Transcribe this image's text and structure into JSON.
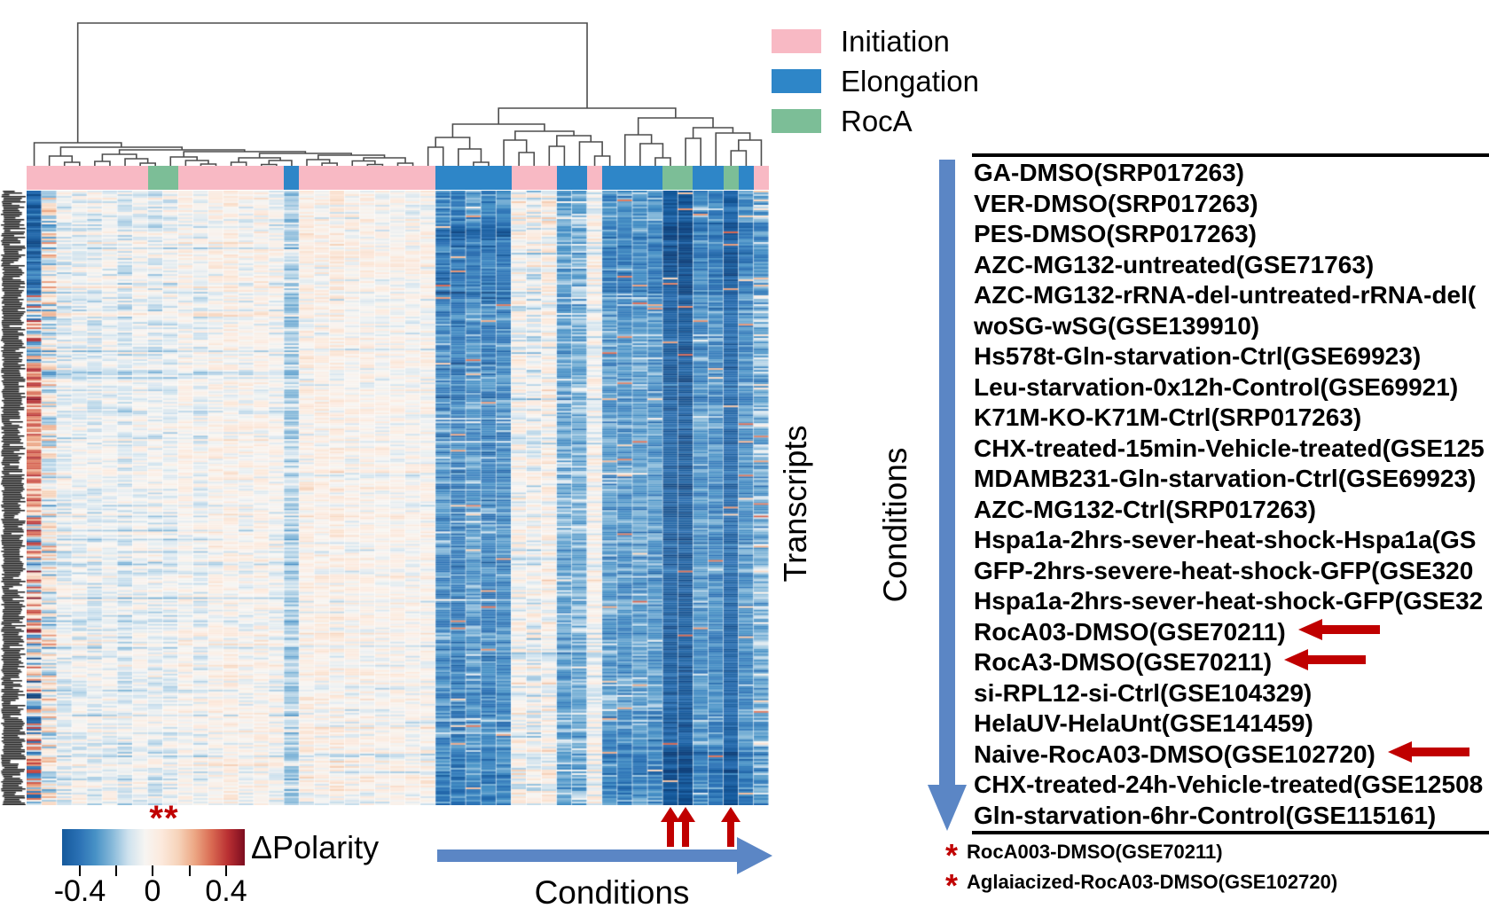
{
  "legend": {
    "items": [
      {
        "label": "Initiation",
        "color": "#F8B9C4"
      },
      {
        "label": "Elongation",
        "color": "#2E86C8"
      },
      {
        "label": "RocA",
        "color": "#7CBE97"
      }
    ]
  },
  "axis_labels": {
    "heatmap_rows": "Transcripts",
    "heatmap_cols_bottom": "Conditions",
    "list_side": "Conditions"
  },
  "colorbar": {
    "label": "ΔPolarity",
    "tick_labels": [
      "-0.4",
      "0",
      "0.4"
    ],
    "significance_marker": "**",
    "gradient": [
      "#155a9c",
      "#2a70b4",
      "#4791c6",
      "#85b8d9",
      "#cfe2ee",
      "#f7f5f2",
      "#fce9dc",
      "#f6d3ba",
      "#eca683",
      "#d96a52",
      "#b92f32",
      "#7c0d20"
    ]
  },
  "conditions_list": {
    "items": [
      {
        "label": "GA-DMSO(SRP017263)",
        "arrow": false
      },
      {
        "label": "VER-DMSO(SRP017263)",
        "arrow": false
      },
      {
        "label": "PES-DMSO(SRP017263)",
        "arrow": false
      },
      {
        "label": "AZC-MG132-untreated(GSE71763)",
        "arrow": false
      },
      {
        "label": "AZC-MG132-rRNA-del-untreated-rRNA-del(",
        "arrow": false
      },
      {
        "label": "woSG-wSG(GSE139910)",
        "arrow": false
      },
      {
        "label": "Hs578t-Gln-starvation-Ctrl(GSE69923)",
        "arrow": false
      },
      {
        "label": "Leu-starvation-0x12h-Control(GSE69921)",
        "arrow": false
      },
      {
        "label": "K71M-KO-K71M-Ctrl(SRP017263)",
        "arrow": false
      },
      {
        "label": "CHX-treated-15min-Vehicle-treated(GSE125",
        "arrow": false
      },
      {
        "label": "MDAMB231-Gln-starvation-Ctrl(GSE69923)",
        "arrow": false
      },
      {
        "label": "AZC-MG132-Ctrl(SRP017263)",
        "arrow": false
      },
      {
        "label": "Hspa1a-2hrs-sever-heat-shock-Hspa1a(GS",
        "arrow": false
      },
      {
        "label": "GFP-2hrs-severe-heat-shock-GFP(GSE320",
        "arrow": false
      },
      {
        "label": "Hspa1a-2hrs-sever-heat-shock-GFP(GSE32",
        "arrow": false
      },
      {
        "label": "RocA03-DMSO(GSE70211)",
        "arrow": true
      },
      {
        "label": "RocA3-DMSO(GSE70211)",
        "arrow": true
      },
      {
        "label": "si-RPL12-si-Ctrl(GSE104329)",
        "arrow": false
      },
      {
        "label": "HelaUV-HelaUnt(GSE141459)",
        "arrow": false
      },
      {
        "label": "Naive-RocA03-DMSO(GSE102720)",
        "arrow": true
      },
      {
        "label": "CHX-treated-24h-Vehicle-treated(GSE12508",
        "arrow": false
      },
      {
        "label": "Gln-starvation-6hr-Control(GSE115161)",
        "arrow": false
      }
    ],
    "footnotes": [
      {
        "marker": "*",
        "label": "RocA003-DMSO(GSE70211)"
      },
      {
        "marker": "*",
        "label": "Aglaiacized-RocA03-DMSO(GSE102720)"
      }
    ]
  },
  "colors": {
    "pink": "#F8B9C4",
    "blue": "#2E86C8",
    "green": "#7CBE97",
    "arrow_blue": "#5B86C5",
    "arrow_red": "#C00000",
    "dendro": "#4D4D4D",
    "rule": "#000000"
  },
  "chart_data": {
    "type": "heatmap",
    "title": "Clustered heatmap of ΔPolarity across transcripts and conditions",
    "value_label": "ΔPolarity",
    "value_range": [
      -0.4,
      0.4
    ],
    "n_columns": 49,
    "n_rows": 346,
    "class_legend": {
      "I": "Initiation",
      "E": "Elongation",
      "R": "RocA"
    },
    "column_annotation": [
      "I",
      "I",
      "I",
      "I",
      "I",
      "I",
      "I",
      "I",
      "R",
      "R",
      "I",
      "I",
      "I",
      "I",
      "I",
      "I",
      "I",
      "E",
      "I",
      "I",
      "I",
      "I",
      "I",
      "I",
      "I",
      "I",
      "I",
      "E",
      "E",
      "E",
      "E",
      "E",
      "I",
      "I",
      "I",
      "E",
      "E",
      "I",
      "E",
      "E",
      "E",
      "E",
      "R",
      "R",
      "E",
      "E",
      "R",
      "E",
      "I"
    ],
    "highlighted_columns_arrows": [
      42,
      43,
      46
    ],
    "highlighted_list_rows": [
      "RocA03-DMSO(GSE70211)",
      "RocA3-DMSO(GSE70211)",
      "Naive-RocA03-DMSO(GSE102720)"
    ],
    "column_profile": [
      {
        "g": "c0",
        "m": 0,
        "s": 0
      },
      {
        "g": "l",
        "m": 0,
        "s": 0.16
      },
      {
        "g": "l",
        "m": -0.02,
        "s": 0.06
      },
      {
        "g": "l",
        "m": -0.015,
        "s": 0.055
      },
      {
        "g": "l",
        "m": -0.02,
        "s": 0.06
      },
      {
        "g": "l",
        "m": -0.01,
        "s": 0.05
      },
      {
        "g": "l",
        "m": -0.025,
        "s": 0.065
      },
      {
        "g": "l",
        "m": -0.01,
        "s": 0.05
      },
      {
        "g": "l",
        "m": -0.02,
        "s": 0.06
      },
      {
        "g": "l",
        "m": -0.015,
        "s": 0.055
      },
      {
        "g": "l",
        "m": 0.005,
        "s": 0.05
      },
      {
        "g": "l",
        "m": -0.01,
        "s": 0.055
      },
      {
        "g": "l",
        "m": 0.01,
        "s": 0.05
      },
      {
        "g": "l",
        "m": 0.015,
        "s": 0.055
      },
      {
        "g": "l",
        "m": 0,
        "s": 0.05
      },
      {
        "g": "l",
        "m": 0.01,
        "s": 0.05
      },
      {
        "g": "l",
        "m": -0.005,
        "s": 0.05
      },
      {
        "g": "l",
        "m": -0.07,
        "s": 0.07
      },
      {
        "g": "r",
        "m": 0.02,
        "s": 0.055
      },
      {
        "g": "r",
        "m": 0.015,
        "s": 0.05
      },
      {
        "g": "r",
        "m": 0.02,
        "s": 0.06
      },
      {
        "g": "r",
        "m": 0.01,
        "s": 0.05
      },
      {
        "g": "r",
        "m": 0.015,
        "s": 0.05
      },
      {
        "g": "r",
        "m": 0.005,
        "s": 0.045
      },
      {
        "g": "r",
        "m": 0.01,
        "s": 0.045
      },
      {
        "g": "r",
        "m": 0.005,
        "s": 0.045
      },
      {
        "g": "r",
        "m": 0.01,
        "s": 0.05
      },
      {
        "g": "b1",
        "m": -0.2,
        "s": 0.13
      },
      {
        "g": "b1",
        "m": -0.24,
        "s": 0.13
      },
      {
        "g": "b1",
        "m": -0.18,
        "s": 0.12
      },
      {
        "g": "b1",
        "m": -0.22,
        "s": 0.13
      },
      {
        "g": "b1",
        "m": -0.2,
        "s": 0.12
      },
      {
        "g": "pm",
        "m": 0.005,
        "s": 0.07
      },
      {
        "g": "pm",
        "m": -0.01,
        "s": 0.075
      },
      {
        "g": "pm",
        "m": 0.01,
        "s": 0.07
      },
      {
        "g": "pm",
        "m": -0.14,
        "s": 0.1
      },
      {
        "g": "pm",
        "m": -0.12,
        "s": 0.1
      },
      {
        "g": "pm",
        "m": 0,
        "s": 0.06
      },
      {
        "g": "b2",
        "m": -0.16,
        "s": 0.11
      },
      {
        "g": "b2",
        "m": -0.18,
        "s": 0.11
      },
      {
        "g": "b2",
        "m": -0.15,
        "s": 0.1
      },
      {
        "g": "b2",
        "m": -0.17,
        "s": 0.11
      },
      {
        "g": "d",
        "m": -0.36,
        "s": 0.1
      },
      {
        "g": "d",
        "m": -0.38,
        "s": 0.1
      },
      {
        "g": "d",
        "m": -0.18,
        "s": 0.11
      },
      {
        "g": "d",
        "m": -0.2,
        "s": 0.11
      },
      {
        "g": "d",
        "m": -0.33,
        "s": 0.1
      },
      {
        "g": "d",
        "m": -0.19,
        "s": 0.1
      },
      {
        "g": "d",
        "m": -0.12,
        "s": 0.12
      }
    ],
    "col0_bands": [
      {
        "f": 0.17,
        "m": -0.33,
        "s": 0.12
      },
      {
        "f": 0.28,
        "m": 0.02,
        "s": 0.3
      },
      {
        "f": 0.52,
        "m": 0.24,
        "s": 0.16
      },
      {
        "f": 0.72,
        "m": 0.1,
        "s": 0.28
      },
      {
        "f": 1.0,
        "m": -0.02,
        "s": 0.3
      }
    ],
    "colormap_stops": [
      [
        -0.5,
        "#0b3d78"
      ],
      [
        -0.38,
        "#155a9c"
      ],
      [
        -0.28,
        "#2a70b4"
      ],
      [
        -0.18,
        "#4791c6"
      ],
      [
        -0.1,
        "#85b8d9"
      ],
      [
        -0.04,
        "#cfe2ee"
      ],
      [
        0,
        "#f7f5f2"
      ],
      [
        0.04,
        "#fce9dc"
      ],
      [
        0.1,
        "#f6d3ba"
      ],
      [
        0.18,
        "#eca683"
      ],
      [
        0.28,
        "#d96a52"
      ],
      [
        0.38,
        "#b92f32"
      ],
      [
        0.5,
        "#7c0d20"
      ]
    ],
    "dendrogram_columns": [
      [
        0,
        [
          [
            1,
            [
              2,
              3,
              183
            ],
            176
          ],
          [
            [
              [
                4,
                5,
                182
              ],
              [
                6,
                [
                  7,
                  8,
                  184
                ],
                179
              ],
              174
            ],
            [
              [
                9,
                [
                  10,
                  [
                    11,
                    12,
                    185
                  ],
                  181
                ],
                177
              ],
              [
                [
                  [
                    13,
                    14,
                    183
                  ],
                  [
                    [
                      15,
                      16,
                      185.5
                    ],
                    17,
                    181
                  ],
                  178
                ],
                [
                  [
                    18,
                    [
                      19,
                      20,
                      184
                    ],
                    180
                  ],
                  [
                    [
                      21,
                      [
                        22,
                        23,
                        185.5
                      ],
                      181.5
                    ],
                    [
                      24,
                      25,
                      184
                    ],
                    178
                  ],
                  175
                ],
                173
              ],
              171
            ],
            169
          ],
          166
        ],
        161
      ],
      [
        [
          [
            [
              26,
              27,
              166
            ],
            [
              28,
              [
                29,
                30,
                183
              ],
              168
            ],
            155
          ],
          [
            [
              31,
              [
                32,
                33,
                172
              ],
              158
            ],
            [
              [
                34,
                35,
                165
              ],
              [
                36,
                [
                  37,
                  38,
                  176
                ],
                160
              ],
              153
            ],
            148
          ],
          140
        ],
        [
          [
            39,
            [
              40,
              [
                41,
                42,
                178
              ],
              162
            ],
            152
          ],
          [
            [
              43,
              44,
              156
            ],
            [
              45,
              [
                [
                  46,
                  47,
                  170
                ],
                48,
                158
              ],
              150
            ],
            144
          ],
          133
        ],
        122
      ],
      26
    ]
  }
}
